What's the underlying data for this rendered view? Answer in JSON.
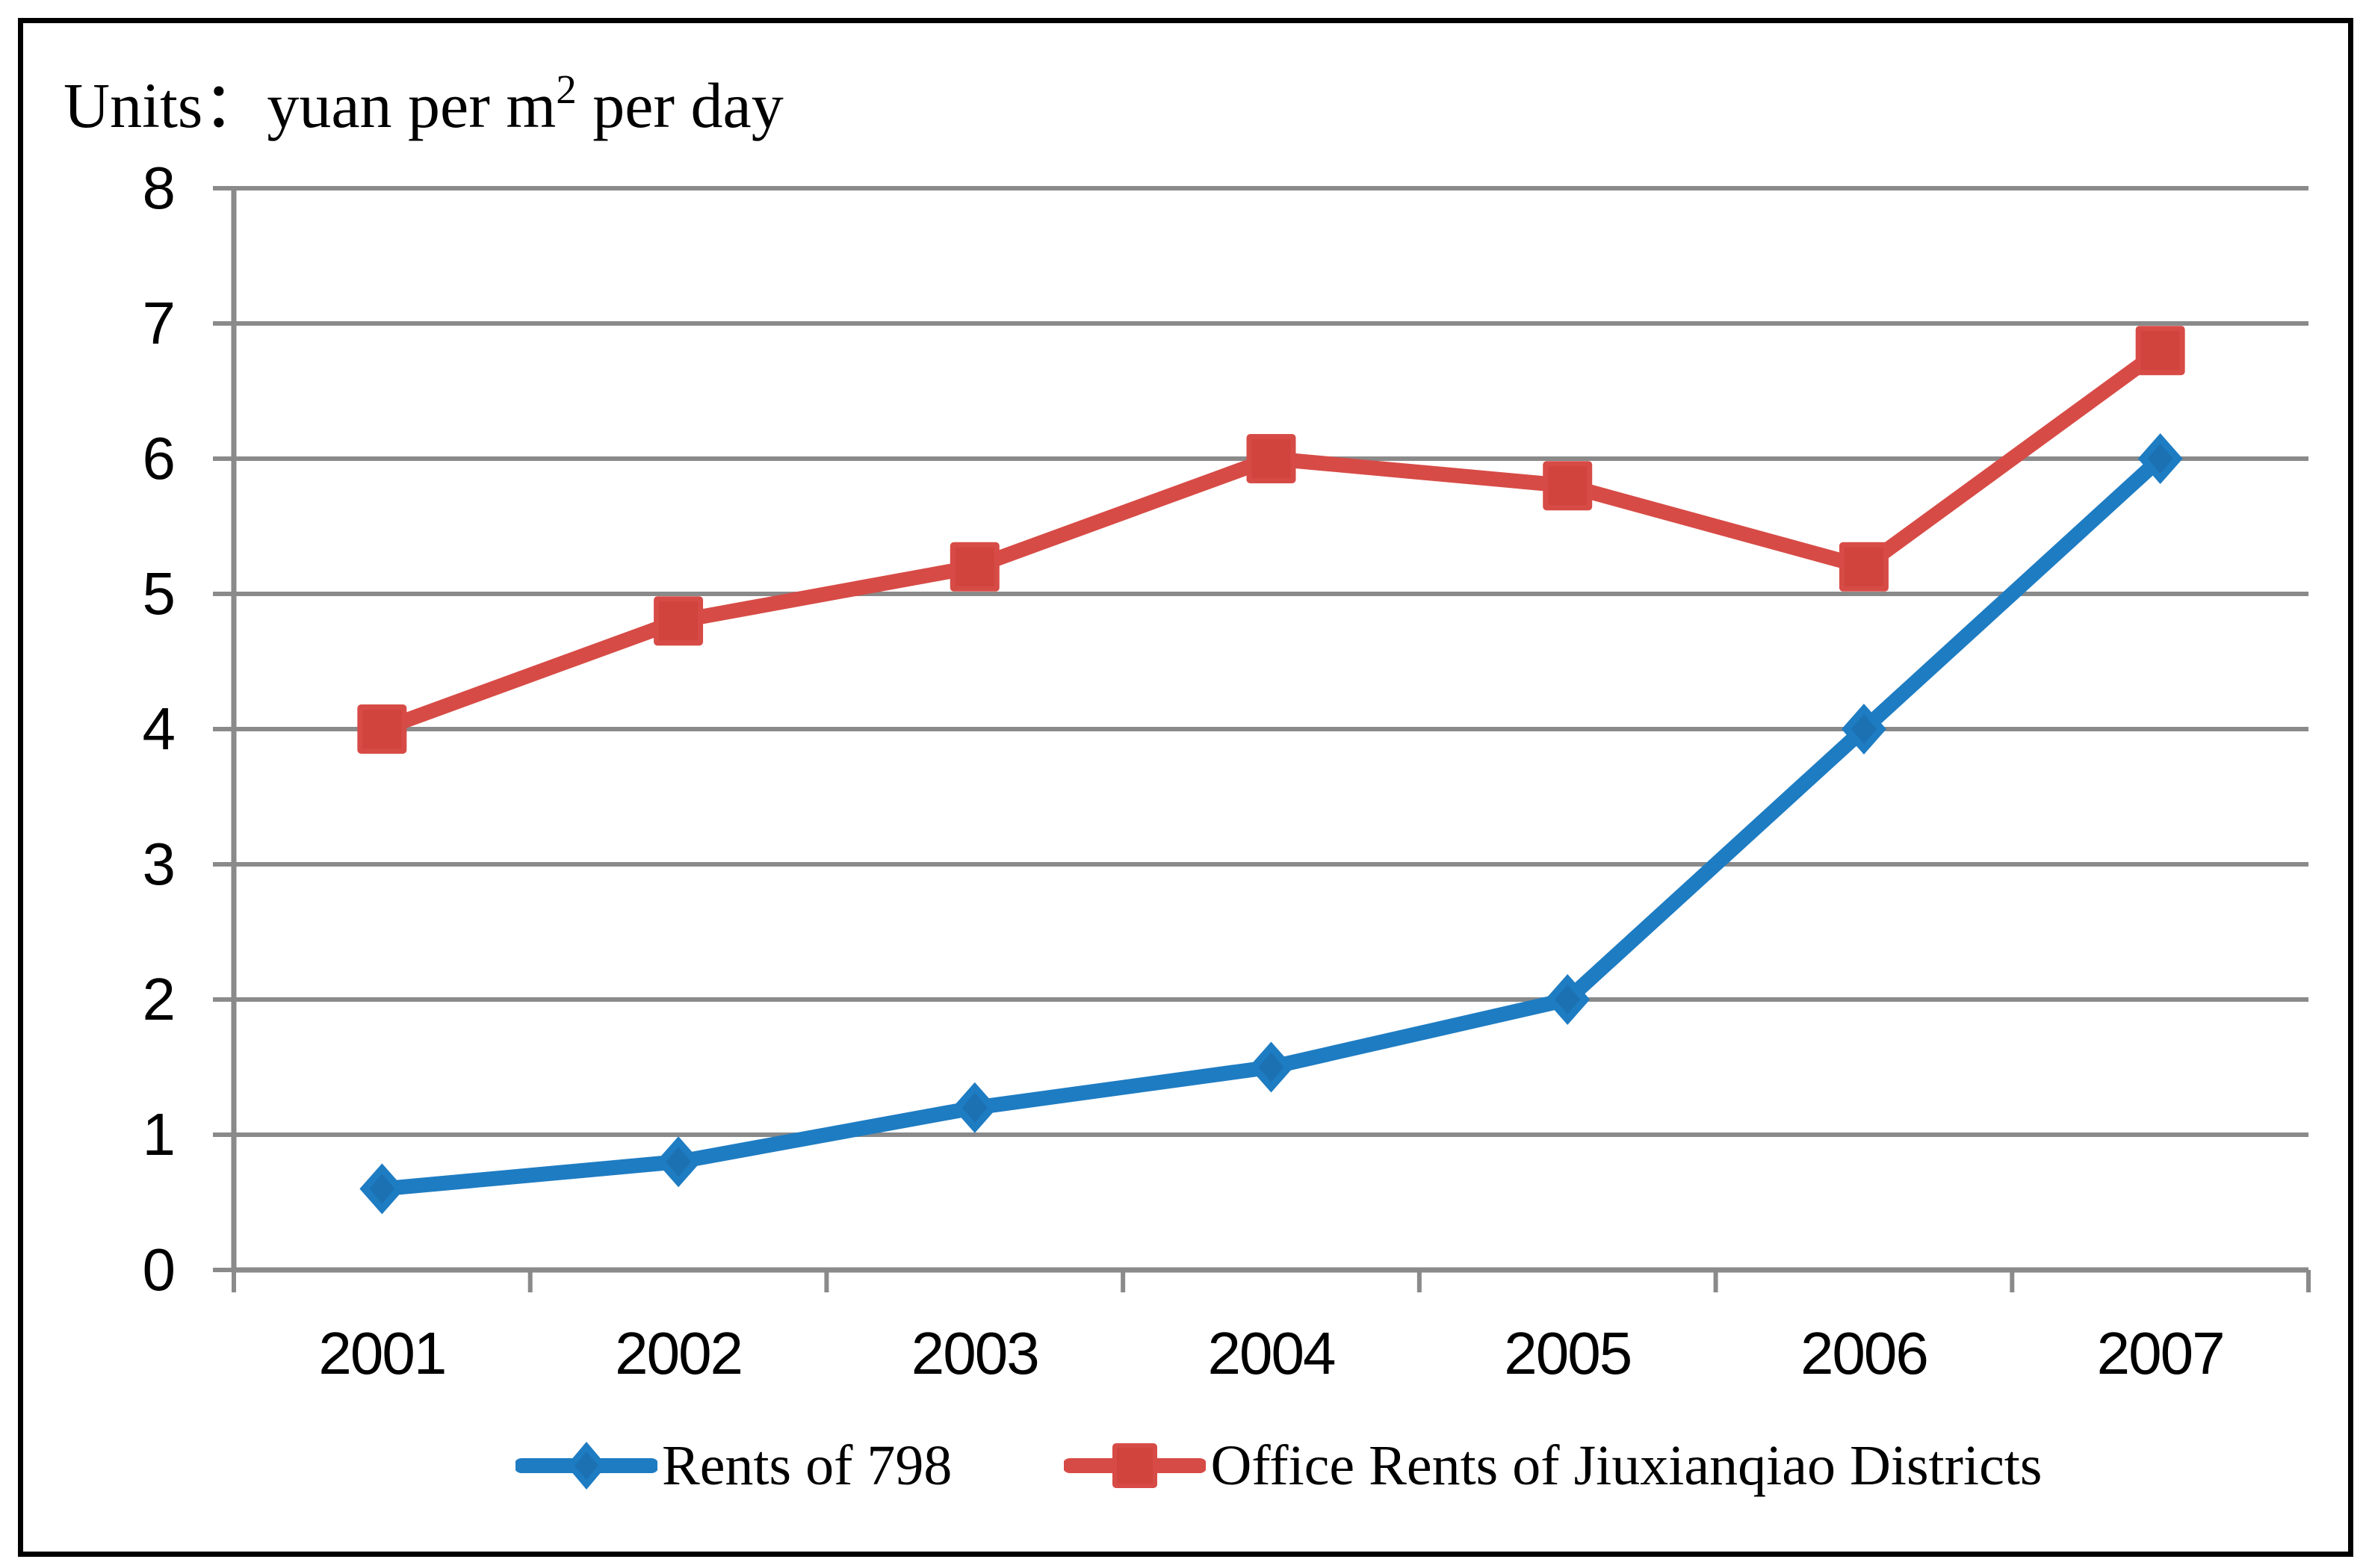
{
  "title": {
    "prefix": "Units：",
    "body": "yuan per m",
    "superscript": "2",
    "suffix": " per day"
  },
  "chart_data": {
    "type": "line",
    "units_label": "Units：yuan per m² per day",
    "categories": [
      "2001",
      "2002",
      "2003",
      "2004",
      "2005",
      "2006",
      "2007"
    ],
    "series": [
      {
        "name": "Rents of 798",
        "marker": "diamond",
        "color": "#1E7CC2",
        "color_dark": "#1C71B3",
        "values": [
          0.6,
          0.8,
          1.2,
          1.5,
          2,
          4,
          6
        ]
      },
      {
        "name": "Office Rents of Jiuxianqiao Districts",
        "marker": "square",
        "color": "#D74B46",
        "color_dark": "#D0443D",
        "values": [
          4,
          4.8,
          5.2,
          6,
          5.8,
          5.2,
          6.8
        ]
      }
    ],
    "xlabel": "",
    "ylabel": "",
    "ylim": [
      0,
      8
    ],
    "yticks": [
      0,
      1,
      2,
      3,
      4,
      5,
      6,
      7,
      8
    ],
    "grid": "horizontal",
    "axis_color": "#8A8A8A",
    "legend_position": "bottom"
  }
}
